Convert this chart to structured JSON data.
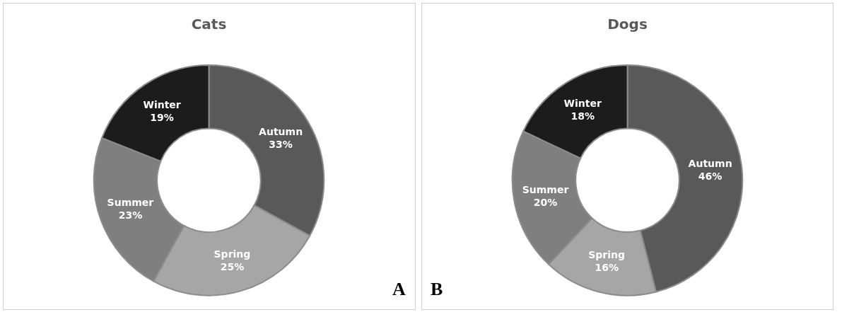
{
  "chart_data": [
    {
      "type": "donut",
      "title": "Cats",
      "categories": [
        "Autumn",
        "Spring",
        "Summer",
        "Winter"
      ],
      "values": [
        33,
        25,
        23,
        19
      ],
      "value_labels": [
        "33%",
        "25%",
        "23%",
        "19%"
      ],
      "colors": [
        "#595959",
        "#a6a6a6",
        "#7f7f7f",
        "#1c1c1c"
      ],
      "annotations": [
        "A"
      ],
      "legend": false
    },
    {
      "type": "donut",
      "title": "Dogs",
      "categories": [
        "Autumn",
        "Spring",
        "Summer",
        "Winter"
      ],
      "values": [
        46,
        16,
        20,
        18
      ],
      "value_labels": [
        "46%",
        "16%",
        "20%",
        "18%"
      ],
      "colors": [
        "#595959",
        "#a6a6a6",
        "#7f7f7f",
        "#1c1c1c"
      ],
      "annotations": [
        "B"
      ],
      "legend": false
    }
  ]
}
